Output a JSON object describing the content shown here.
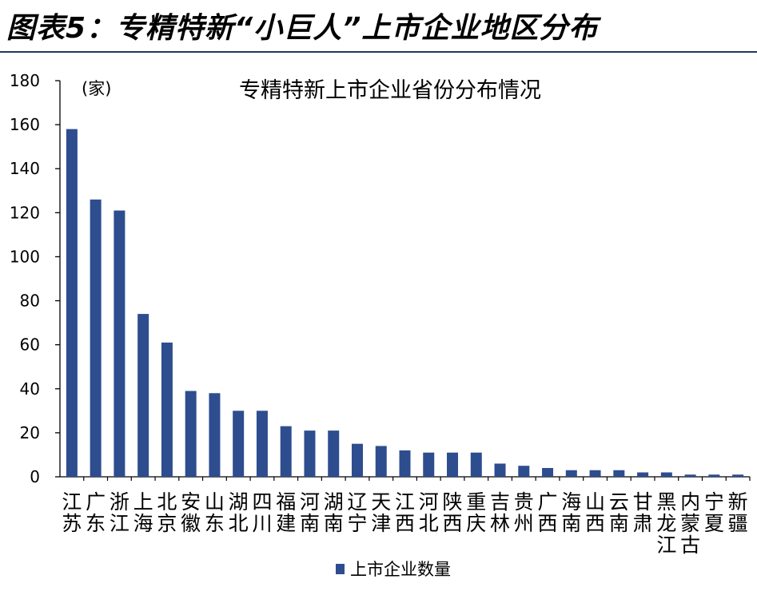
{
  "figure_title": "图表5：专精特新“小巨人”上市企业地区分布",
  "colors": {
    "bar": "#2e4d8f",
    "axis": "#000000",
    "rule": "#1f3b63"
  },
  "chart_data": {
    "type": "bar",
    "title": "专精特新上市企业省份分布情况",
    "unit_label": "(家)",
    "xlabel": "",
    "ylabel": "",
    "ylim": [
      0,
      180
    ],
    "yticks": [
      0,
      20,
      40,
      60,
      80,
      100,
      120,
      140,
      160,
      180
    ],
    "categories": [
      "江苏",
      "广东",
      "浙江",
      "上海",
      "北京",
      "安徽",
      "山东",
      "湖北",
      "四川",
      "福建",
      "河南",
      "湖南",
      "辽宁",
      "天津",
      "江西",
      "河北",
      "陕西",
      "重庆",
      "吉林",
      "贵州",
      "广西",
      "海南",
      "山西",
      "云南",
      "甘肃",
      "黑龙江",
      "内蒙古",
      "宁夏",
      "新疆"
    ],
    "series": [
      {
        "name": "上市企业数量",
        "values": [
          158,
          126,
          121,
          74,
          61,
          39,
          38,
          30,
          30,
          23,
          21,
          21,
          15,
          14,
          12,
          11,
          11,
          11,
          6,
          5,
          4,
          3,
          3,
          3,
          2,
          2,
          1,
          1,
          1
        ]
      }
    ],
    "legend": "bottom-center",
    "grid": false
  }
}
